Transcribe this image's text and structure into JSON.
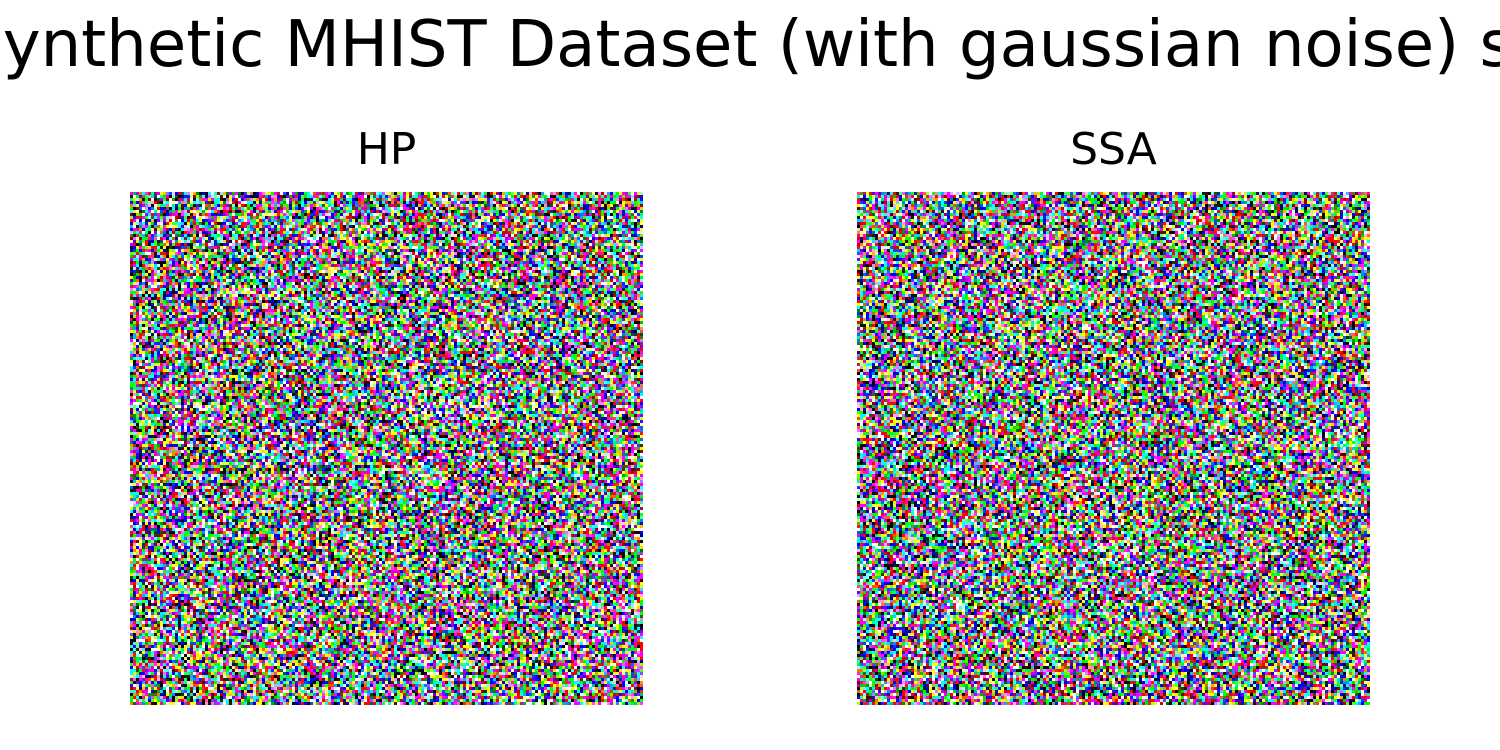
{
  "figure": {
    "suptitle": "Synthetic MHIST Dataset (with gaussian noise) st",
    "panels": [
      {
        "title": "HP",
        "image": "gaussian-noise-rgb"
      },
      {
        "title": "SSA",
        "image": "gaussian-noise-rgb"
      }
    ]
  }
}
